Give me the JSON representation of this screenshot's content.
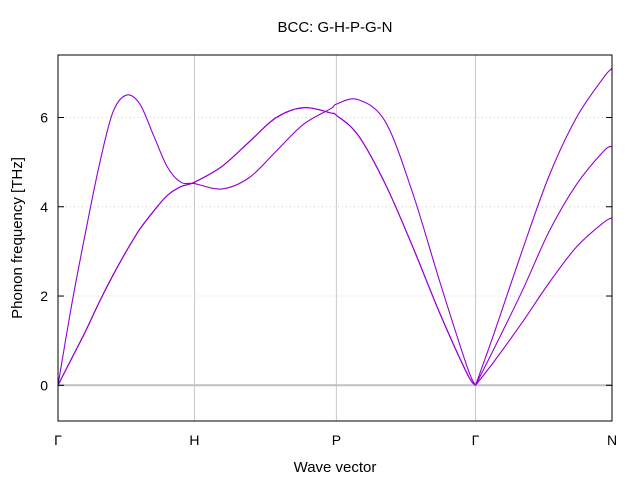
{
  "chart_data": {
    "type": "line",
    "title": "BCC: G-H-P-G-N",
    "xlabel": "Wave vector",
    "ylabel": "Phonon frequency [THz]",
    "x_tick_labels": [
      "Γ",
      "H",
      "P",
      "Γ",
      "N"
    ],
    "x_tick_positions": [
      0,
      1,
      2.04,
      3.06,
      4.06
    ],
    "xlim": [
      0,
      4.06
    ],
    "ylim": [
      -0.8,
      7.4
    ],
    "y_ticks": [
      0,
      2,
      4,
      6
    ],
    "grid": "y-dotted, x-solid at high-symmetry points",
    "legend": "none",
    "colors": {
      "band": "#9400d3",
      "zero_line": "#c0c0c0",
      "grid_v": "#c8c8c8",
      "grid_h": "#d0d0d0"
    },
    "series": [
      {
        "x": [
          0.0,
          0.1,
          0.2,
          0.3,
          0.4,
          0.5,
          0.6,
          0.7,
          0.8,
          0.9,
          1.0,
          1.2,
          1.4,
          1.6,
          1.8,
          2.0,
          2.04,
          2.2,
          2.4,
          2.6,
          2.8,
          3.0,
          3.06
        ],
        "values": [
          0.0,
          0.6,
          1.2,
          1.85,
          2.45,
          3.0,
          3.5,
          3.9,
          4.25,
          4.45,
          4.55,
          4.9,
          5.45,
          6.0,
          6.22,
          6.1,
          6.05,
          5.6,
          4.5,
          3.1,
          1.6,
          0.25,
          0.0
        ]
      },
      {
        "x": [
          0.0,
          0.1,
          0.2,
          0.3,
          0.4,
          0.5,
          0.6,
          0.7,
          0.8,
          0.9,
          1.0,
          1.2,
          1.4,
          1.6,
          1.8,
          2.0,
          2.04,
          2.2,
          2.4,
          2.6,
          2.8,
          3.0,
          3.06
        ],
        "values": [
          0.0,
          0.6,
          1.2,
          1.85,
          2.45,
          3.0,
          3.5,
          3.9,
          4.25,
          4.45,
          4.55,
          4.9,
          5.45,
          6.0,
          6.22,
          6.1,
          6.05,
          5.6,
          4.5,
          3.1,
          1.6,
          0.25,
          0.0
        ]
      },
      {
        "x": [
          0.0,
          0.1,
          0.2,
          0.3,
          0.4,
          0.5,
          0.6,
          0.7,
          0.8,
          0.9,
          1.0,
          1.2,
          1.4,
          1.6,
          1.8,
          2.0,
          2.04,
          2.2,
          2.4,
          2.6,
          2.8,
          3.0,
          3.06
        ],
        "values": [
          0.0,
          1.8,
          3.4,
          4.9,
          6.1,
          6.5,
          6.3,
          5.6,
          4.9,
          4.55,
          4.52,
          4.4,
          4.65,
          5.25,
          5.85,
          6.2,
          6.3,
          6.4,
          5.9,
          4.3,
          2.3,
          0.4,
          0.0
        ]
      },
      {
        "x": [
          3.06,
          3.2,
          3.4,
          3.6,
          3.8,
          4.0,
          4.06
        ],
        "values": [
          0.0,
          0.55,
          1.4,
          2.3,
          3.1,
          3.65,
          3.75
        ]
      },
      {
        "x": [
          3.06,
          3.2,
          3.4,
          3.6,
          3.8,
          4.0,
          4.06
        ],
        "values": [
          0.0,
          0.85,
          2.1,
          3.45,
          4.5,
          5.25,
          5.35
        ]
      },
      {
        "x": [
          3.06,
          3.2,
          3.4,
          3.6,
          3.8,
          4.0,
          4.06
        ],
        "values": [
          0.0,
          1.2,
          3.0,
          4.7,
          6.0,
          6.9,
          7.1
        ]
      }
    ]
  }
}
